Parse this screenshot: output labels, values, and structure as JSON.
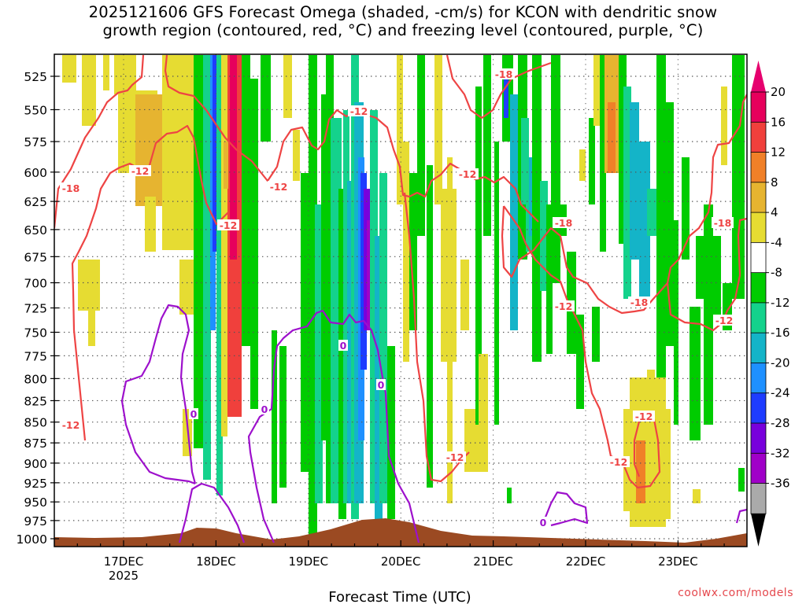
{
  "chart_data": {
    "type": "heatmap",
    "title_line1": "2025121606 GFS Forecast Omega (shaded, -cm/s) for KCON with dendritic snow",
    "title_line2": "growth region (contoured, red, °C) and freezing level (contoured, purple, °C)",
    "xlabel": "Forecast Time (UTC)",
    "x_ticks": [
      "17DEC",
      "18DEC",
      "19DEC",
      "20DEC",
      "21DEC",
      "22DEC",
      "23DEC"
    ],
    "x_year": "2025",
    "y_ticks": [
      "525",
      "550",
      "575",
      "600",
      "625",
      "650",
      "675",
      "700",
      "725",
      "750",
      "775",
      "800",
      "825",
      "850",
      "875",
      "900",
      "925",
      "950",
      "975",
      "1000"
    ],
    "ylim": [
      1010,
      500
    ],
    "y_scale": "log-pressure",
    "grid": true,
    "colorbar": {
      "labels": [
        "20",
        "16",
        "12",
        "8",
        "4",
        "-4",
        "-8",
        "-12",
        "-16",
        "-20",
        "-24",
        "-28",
        "-32",
        "-36"
      ],
      "bins": [
        {
          "color": "#e6005c"
        },
        {
          "color": "#f0403c"
        },
        {
          "color": "#f08028"
        },
        {
          "color": "#e6b430"
        },
        {
          "color": "#e6dc32"
        },
        {
          "color": "#ffffff"
        },
        {
          "color": "#00cc00"
        },
        {
          "color": "#14d28c"
        },
        {
          "color": "#14b4c8"
        },
        {
          "color": "#1e90ff"
        },
        {
          "color": "#1e3cff"
        },
        {
          "color": "#7800dc"
        },
        {
          "color": "#a000c8"
        },
        {
          "color": "#aaaaaa"
        }
      ],
      "top_arrow_color": "#e6006e",
      "bottom_arrow_color": "#000000"
    },
    "red_contour_label": "-12",
    "red_contour_label_b": "-18",
    "purple_contour_label": "0",
    "colors": {
      "dgz_contour": "#ee4444",
      "freezing_contour": "#9d10cc",
      "terrain": "#9b4a22",
      "grid": "#555555",
      "credit": "#e5484d"
    }
  },
  "credit": "coolwx.com/models"
}
